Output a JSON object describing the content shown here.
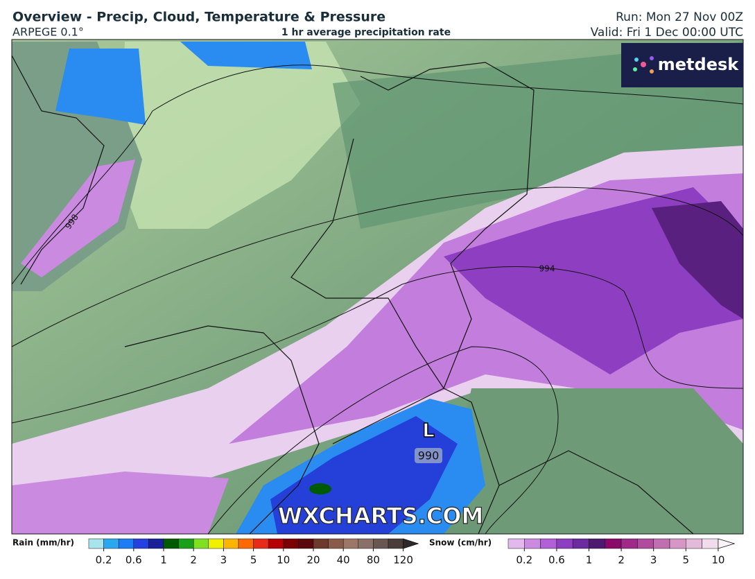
{
  "header": {
    "title": "Overview - Precip, Cloud, Temperature & Pressure",
    "model": "ARPEGE 0.1°",
    "subtitle": "1 hr average precipitation rate",
    "run": "Run: Mon 27 Nov 00Z",
    "valid": "Valid: Fri 1 Dec 00:00 UTC"
  },
  "logo": "metdesk",
  "watermark": "WXCHARTS.COM",
  "map": {
    "isobars": [
      "998",
      "994",
      "990"
    ],
    "low": "L"
  },
  "legend": {
    "rain": {
      "label": "Rain (mm/hr)",
      "ticks": [
        0.2,
        0.6,
        1,
        2,
        3,
        5,
        10,
        20,
        40,
        80,
        120
      ],
      "swatches": [
        "#a8e4ec",
        "#2aa8f0",
        "#1e7cf5",
        "#2540e0",
        "#1a1f9a",
        "#005a00",
        "#18a018",
        "#80e020",
        "#f0f000",
        "#ffb400",
        "#ff6a00",
        "#e82a1a",
        "#b40000",
        "#7a0000",
        "#5a0a0a",
        "#6e3a2e",
        "#8a5a4a",
        "#9c7666",
        "#8a7068",
        "#6a5650",
        "#4a3c38",
        "#302828"
      ]
    },
    "snow": {
      "label": "Snow (cm/hr)",
      "ticks": [
        0.2,
        0.6,
        1,
        2,
        3,
        5,
        10
      ],
      "swatches": [
        "#e3b8ec",
        "#c98ae0",
        "#b05fd6",
        "#8e3ec0",
        "#6c2aa0",
        "#4e1a70",
        "#8a0a6a",
        "#a02a8a",
        "#b04c9e",
        "#c070b0",
        "#d496c6",
        "#e4bada",
        "#f0dcec",
        "#faf4fa"
      ]
    }
  }
}
